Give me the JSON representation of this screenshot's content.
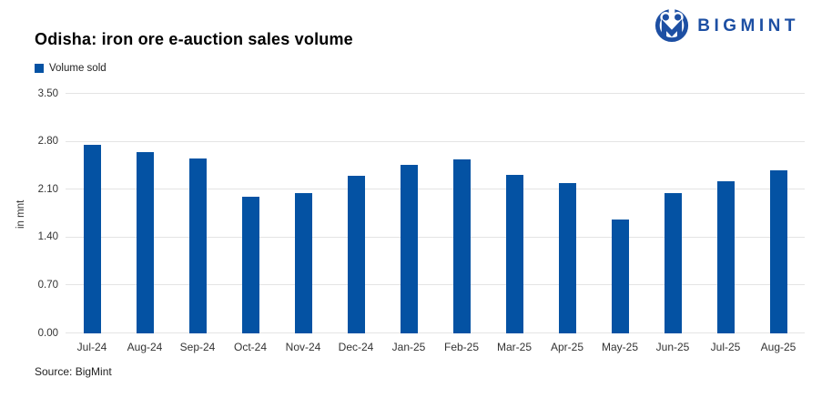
{
  "header": {
    "title": "Odisha: iron ore e-auction sales volume",
    "logo_text": "BIGMINT"
  },
  "legend": {
    "label": "Volume sold"
  },
  "footer": {
    "source": "Source: BigMint"
  },
  "colors": {
    "bar": "#0452a3",
    "logo": "#1d4fa3",
    "grid": "#e4e4e4"
  },
  "chart_data": {
    "type": "bar",
    "title": "Odisha: iron ore e-auction sales volume",
    "series_name": "Volume sold",
    "xlabel": "",
    "ylabel": "in mnt",
    "ylim": [
      0,
      3.5
    ],
    "yticks": [
      0,
      0.7,
      1.4,
      2.1,
      2.8,
      3.5
    ],
    "ytick_labels": [
      "0.00",
      "0.70",
      "1.40",
      "2.10",
      "2.80",
      "3.50"
    ],
    "categories": [
      "Jul-24",
      "Aug-24",
      "Sep-24",
      "Oct-24",
      "Nov-24",
      "Dec-24",
      "Jan-25",
      "Feb-25",
      "Mar-25",
      "Apr-25",
      "May-25",
      "Jun-25",
      "Jul-25",
      "Aug-25"
    ],
    "values": [
      2.75,
      2.65,
      2.56,
      1.99,
      2.05,
      2.3,
      2.46,
      2.54,
      2.32,
      2.2,
      1.67,
      2.05,
      2.22,
      2.38
    ],
    "bar_color": "#0452a3",
    "grid": true,
    "legend_position": "top-left"
  }
}
